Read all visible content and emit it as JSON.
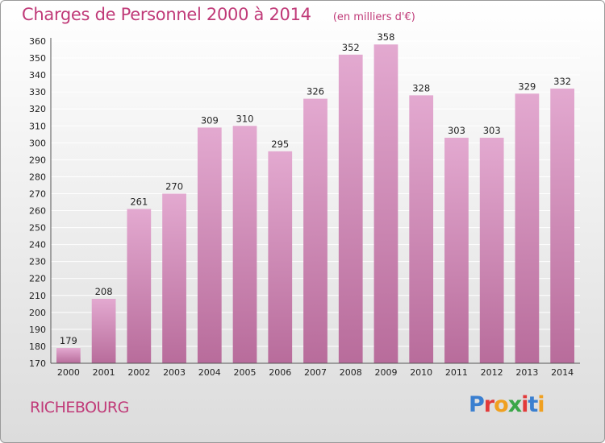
{
  "header": {
    "title": "Charges de Personnel 2000 à 2014",
    "unit": "(en milliers d'€)"
  },
  "footer": {
    "town": "RICHEBOURG",
    "logo": "Proxiti",
    "logo_colors": [
      "#3a7fd0",
      "#e23a3a",
      "#f0a020",
      "#3aa648",
      "#e23a3a",
      "#3a7fd0",
      "#f0a020"
    ]
  },
  "colors": {
    "bar_top": "#e3a9d0",
    "bar_bottom": "#b86c9b",
    "grid": "#ffffff",
    "accent": "#c03a78"
  },
  "chart_data": {
    "type": "bar",
    "title": "Charges de Personnel 2000 à 2014",
    "unit": "(en milliers d'€)",
    "xlabel": "",
    "ylabel": "",
    "categories": [
      "2000",
      "2001",
      "2002",
      "2003",
      "2004",
      "2005",
      "2006",
      "2007",
      "2008",
      "2009",
      "2010",
      "2011",
      "2012",
      "2013",
      "2014"
    ],
    "values": [
      179,
      208,
      261,
      270,
      309,
      310,
      295,
      326,
      352,
      358,
      328,
      303,
      303,
      329,
      332
    ],
    "ylim": [
      170,
      360
    ],
    "ytick_step": 10,
    "grid": true,
    "data_labels": true
  }
}
